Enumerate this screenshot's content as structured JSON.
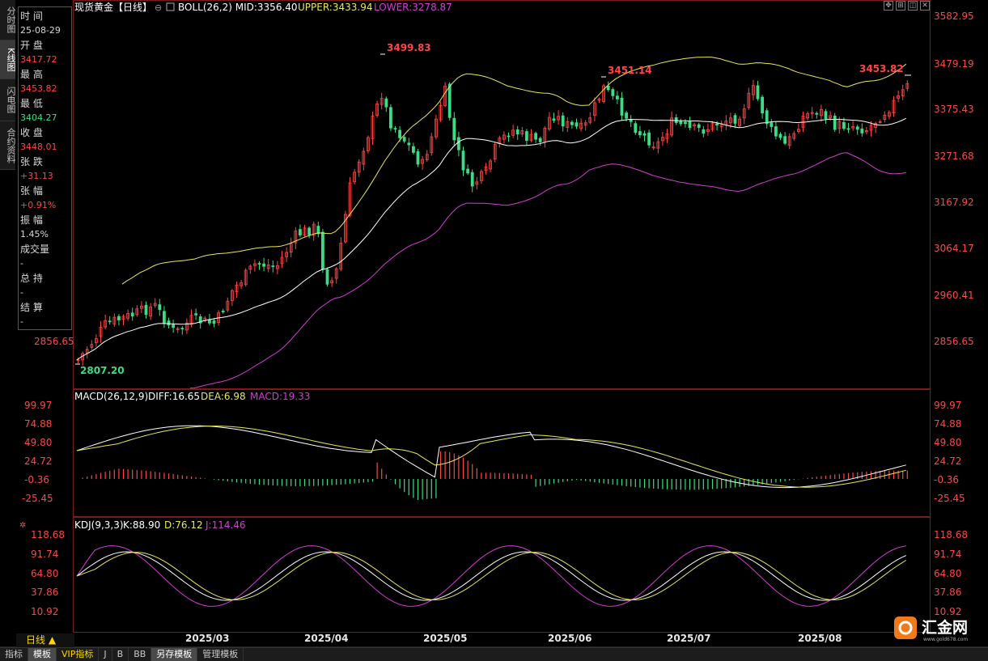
{
  "side_tabs": [
    "分时图",
    "K线图",
    "闪电图",
    "合约资料"
  ],
  "side_tabs_active": 1,
  "info": {
    "time_label": "时 间",
    "time_value": "25-08-29",
    "open_label": "开 盘",
    "open_value": "3417.72",
    "high_label": "最 高",
    "high_value": "3453.82",
    "low_label": "最 低",
    "low_value": "3404.27",
    "close_label": "收 盘",
    "close_value": "3448.01",
    "change_label": "张 跌",
    "change_value": "+31.13",
    "pct_label": "张 幅",
    "pct_value": "+0.91%",
    "amp_label": "振 幅",
    "amp_value": "1.45%",
    "vol_label": "成交量",
    "vol_value": "-",
    "oi_label": "总 持",
    "oi_value": "-",
    "settle_label": "结 算",
    "settle_value": "-"
  },
  "main_header": {
    "symbol": "现货黄金【日线】",
    "boll": "BOLL(26,2) MID:3356.40",
    "upper": "UPPER:3433.94",
    "lower": "LOWER:3278.87"
  },
  "macd_header": {
    "name": "MACD(26,12,9)",
    "diff": "DIFF:16.65",
    "dea": "DEA:6.98",
    "macd": "MACD:19.33"
  },
  "kdj_header": {
    "name": "KDJ(9,3,3)",
    "k": "K:88.90",
    "d": "D:76.12",
    "j": "J:114.46"
  },
  "annotations": {
    "high1": "3499.83",
    "high2": "3451.14",
    "high3": "3453.82",
    "low1": "2807.20",
    "left_price": "2856.65"
  },
  "price_axis": [
    "3582.95",
    "3479.19",
    "3375.43",
    "3271.68",
    "3167.92",
    "3064.17",
    "2960.41",
    "2856.65"
  ],
  "macd_axis": [
    "99.97",
    "74.88",
    "49.80",
    "24.72",
    "-0.36",
    "-25.45"
  ],
  "kdj_axis": [
    "118.68",
    "91.74",
    "64.80",
    "37.86",
    "10.92"
  ],
  "months": [
    "2025/03",
    "2025/04",
    "2025/05",
    "2025/06",
    "2025/07",
    "2025/08"
  ],
  "period": "日线 ▲",
  "bottom_tabs": [
    "指标",
    "模板",
    "VIP指标",
    "J",
    "B",
    "BB",
    "另存模板",
    "管理模板"
  ],
  "logo_text": "汇金网",
  "logo_url": "www.gold678.com",
  "colors": {
    "up": "#ff4545",
    "down": "#3ddc84",
    "mid": "#ffffff",
    "upper": "#e8e85a",
    "lower": "#d43bd4",
    "dea": "#e8e85a",
    "macd": "#d43bd4"
  }
}
